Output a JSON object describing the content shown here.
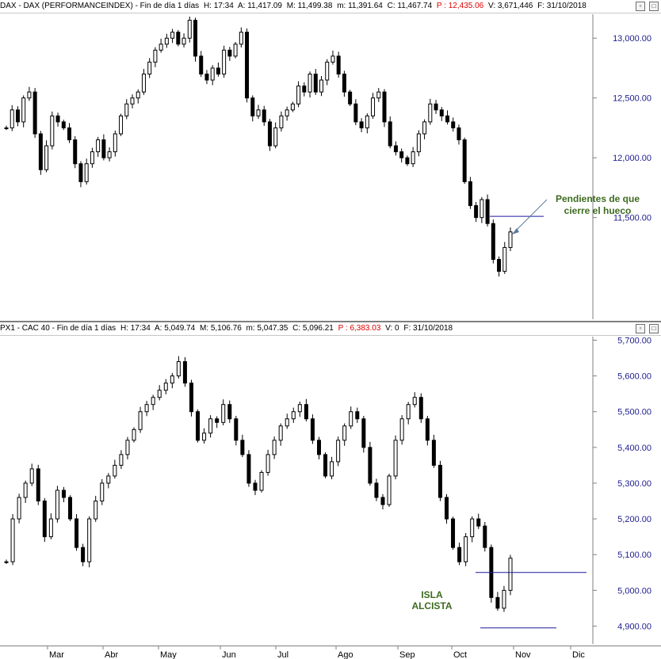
{
  "dax_header": {
    "title": "DAX - DAX (PERFORMANCEINDEX) - Fin de día 1 días",
    "h": "H: 17:34",
    "a": "A: 11,417.09",
    "m": "M: 11,499.38",
    "mn": "m: 11,391.64",
    "c": "C: 11,467.74",
    "p": "P : 12,435.06",
    "v": "V: 3,671,446",
    "f": "F: 31/10/2018"
  },
  "cac_header": {
    "title": "PX1 - CAC 40 - Fin de día 1 días",
    "h": "H: 17:34",
    "a": "A: 5,049.74",
    "m": "M: 5,106.76",
    "mn": "m: 5,047.35",
    "c": "C: 5,096.21",
    "p": "P : 6,383.03",
    "v": "V: 0",
    "f": "F: 31/10/2018"
  },
  "colors": {
    "axis_text": "#1c1c8c",
    "annotation": "#3d6b1f",
    "hline": "#1a1aa0",
    "p_red": "#e00000"
  },
  "chart_data": [
    {
      "type": "candlestick",
      "title": "DAX - DAX (PERFORMANCEINDEX)",
      "yticks": [
        "13,000.00",
        "12,500.00",
        "12,000.00",
        "11,500.00"
      ],
      "yticks_values": [
        13000,
        12500,
        12000,
        11500
      ],
      "ylim": [
        10650,
        13200
      ],
      "x_categories": [
        "Mar",
        "Abr",
        "May",
        "Jun",
        "Jul",
        "Ago",
        "Sep",
        "Oct",
        "Nov",
        "Dic"
      ],
      "close_series": [
        12250,
        12400,
        12300,
        12500,
        12550,
        12200,
        11900,
        12100,
        12350,
        12300,
        12250,
        12150,
        11950,
        11800,
        11950,
        12050,
        12150,
        12000,
        12050,
        12200,
        12350,
        12450,
        12500,
        12550,
        12700,
        12800,
        12900,
        12950,
        13000,
        13050,
        12950,
        13000,
        13150,
        12850,
        12700,
        12650,
        12750,
        12700,
        12900,
        12850,
        12950,
        13050,
        12500,
        12350,
        12400,
        12300,
        12100,
        12250,
        12350,
        12400,
        12450,
        12600,
        12550,
        12700,
        12550,
        12650,
        12800,
        12850,
        12700,
        12550,
        12450,
        12300,
        12250,
        12350,
        12500,
        12550,
        12300,
        12100,
        12050,
        12000,
        11950,
        12050,
        12200,
        12300,
        12450,
        12400,
        12350,
        12300,
        12250,
        12150,
        11800,
        11600,
        11500,
        11650,
        11450,
        11150,
        11050,
        11250,
        11380
      ],
      "annotations": [
        {
          "text": "Pendientes de que",
          "text2": "cierre el hueco"
        }
      ],
      "hline_value": 11510,
      "grid": false
    },
    {
      "type": "candlestick",
      "title": "PX1 - CAC 40",
      "yticks": [
        "5,700.00",
        "5,600.00",
        "5,500.00",
        "5,400.00",
        "5,300.00",
        "5,200.00",
        "5,100.00",
        "5,000.00",
        "4,900.00"
      ],
      "yticks_values": [
        5700,
        5600,
        5500,
        5400,
        5300,
        5200,
        5100,
        5000,
        4900
      ],
      "ylim": [
        4850,
        5710
      ],
      "x_categories": [
        "Mar",
        "Abr",
        "May",
        "Jun",
        "Jul",
        "Ago",
        "Sep",
        "Oct",
        "Nov",
        "Dic"
      ],
      "close_series": [
        5080,
        5200,
        5260,
        5300,
        5340,
        5250,
        5150,
        5200,
        5280,
        5260,
        5200,
        5120,
        5080,
        5200,
        5250,
        5300,
        5320,
        5350,
        5380,
        5420,
        5450,
        5500,
        5520,
        5540,
        5560,
        5580,
        5600,
        5640,
        5580,
        5500,
        5420,
        5440,
        5480,
        5470,
        5520,
        5480,
        5420,
        5380,
        5300,
        5280,
        5330,
        5380,
        5420,
        5460,
        5480,
        5500,
        5520,
        5480,
        5420,
        5380,
        5320,
        5360,
        5420,
        5460,
        5500,
        5480,
        5400,
        5300,
        5260,
        5240,
        5320,
        5420,
        5480,
        5520,
        5540,
        5480,
        5420,
        5350,
        5260,
        5200,
        5120,
        5080,
        5150,
        5200,
        5180,
        5120,
        4980,
        4950,
        5000,
        5090
      ],
      "annotations": [
        {
          "text": "ISLA",
          "text2": "ALCISTA"
        }
      ],
      "hline_upper": 5050,
      "hline_lower": 4895,
      "grid": false
    }
  ]
}
